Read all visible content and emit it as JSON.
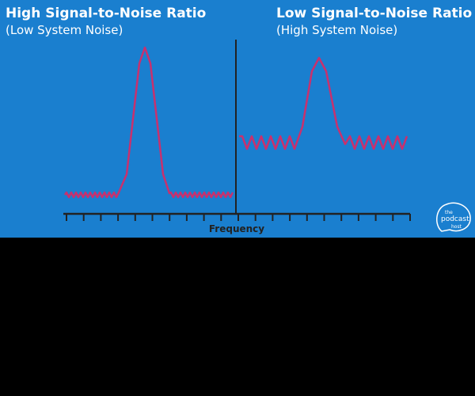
{
  "left": {
    "title": "High Signal-to-Noise Ratio",
    "subtitle": "(Low System Noise)"
  },
  "right": {
    "title": "Low Signal-to-Noise Ratio",
    "subtitle": "(High System Noise)"
  },
  "axis_label": "Frequency",
  "logo": {
    "line1": "the",
    "line2": "podcast",
    "line3": "host"
  }
}
